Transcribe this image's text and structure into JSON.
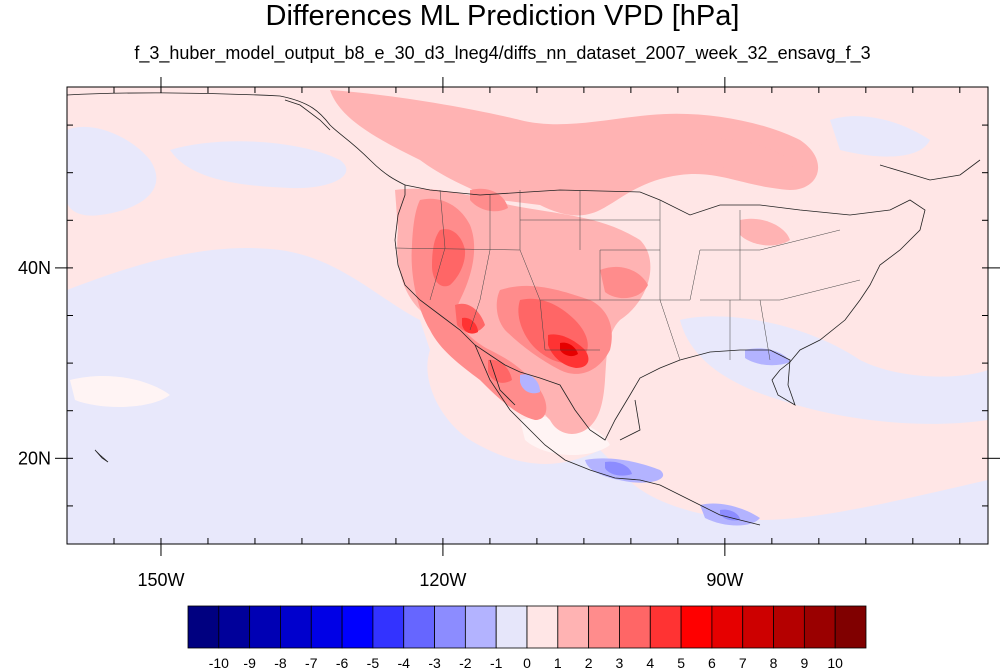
{
  "title": "Differences ML Prediction VPD [hPa]",
  "subtitle": "f_3_huber_model_output_b8_e_30_d3_lneg4/diffs_nn_dataset_2007_week_32_ensavg_f_3",
  "map": {
    "lon_range": [
      -160,
      -62
    ],
    "lat_range": [
      11,
      59
    ],
    "x_ticks": [
      {
        "value": -150,
        "label": "150W"
      },
      {
        "value": -120,
        "label": "120W"
      },
      {
        "value": -90,
        "label": "90W"
      }
    ],
    "y_ticks": [
      {
        "value": 40,
        "label": "40N"
      },
      {
        "value": 20,
        "label": "20N"
      }
    ],
    "background_color": "#ffe6e6",
    "ocean_color": "#e8e8fb"
  },
  "colorbar": {
    "labels": [
      "-10",
      "-9",
      "-8",
      "-7",
      "-6",
      "-5",
      "-4",
      "-3",
      "-2",
      "-1",
      "0",
      "1",
      "2",
      "3",
      "4",
      "5",
      "6",
      "7",
      "8",
      "9",
      "10"
    ],
    "colors": [
      "#000080",
      "#00009a",
      "#0000b4",
      "#0000cd",
      "#0000e6",
      "#0000ff",
      "#3333ff",
      "#6666ff",
      "#8c8cff",
      "#b3b3ff",
      "#e6e6fa",
      "#ffe6e6",
      "#ffb3b3",
      "#ff8c8c",
      "#ff6666",
      "#ff3333",
      "#ff0000",
      "#e60000",
      "#cd0000",
      "#b40000",
      "#9a0000",
      "#800000"
    ]
  }
}
